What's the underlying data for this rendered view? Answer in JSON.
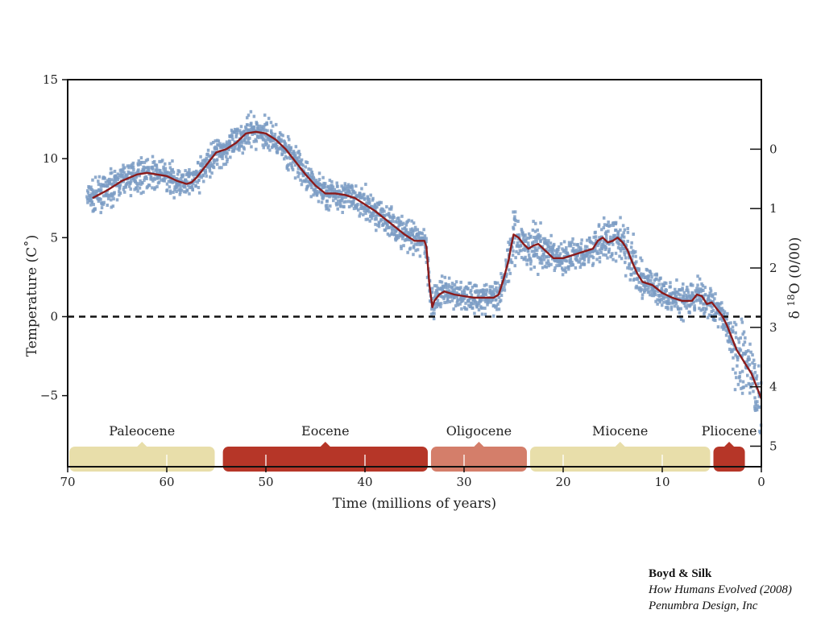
{
  "chart_data": {
    "type": "line",
    "title": "",
    "xlabel": "Time (millions of years)",
    "ylabel": "Temperature (C˚)",
    "y2label": "δ 18O (0/00)",
    "xlim": [
      70,
      0
    ],
    "ylim": [
      -9.5,
      15
    ],
    "x_ticks": [
      70,
      60,
      50,
      40,
      30,
      20,
      10,
      0
    ],
    "x_tick_labels": [
      "70",
      "60",
      "50",
      "40",
      "30",
      "20",
      "10",
      "0"
    ],
    "y_ticks": [
      15,
      10,
      5,
      0,
      -5
    ],
    "y_tick_labels": [
      "15",
      "10",
      "5",
      "0",
      "−5"
    ],
    "y2_ticks": [
      0,
      1,
      2,
      3,
      4,
      5
    ],
    "y2_tick_labels": [
      "0",
      "1",
      "2",
      "3",
      "4",
      "5"
    ],
    "y2_to_temperature": [
      [
        0,
        10.6
      ],
      [
        5,
        -8.2
      ]
    ],
    "reference_line": {
      "y": 0,
      "style": "dashed"
    },
    "grid": false,
    "series": [
      {
        "kind": "smoothed-mean",
        "color": "#8b1a1a",
        "x": [
          67.5,
          66,
          64.5,
          63,
          62,
          61,
          60,
          59,
          58,
          57.5,
          57,
          56,
          55,
          54,
          53,
          52,
          51,
          50,
          49,
          48,
          47,
          46,
          45,
          44,
          43,
          42,
          41,
          40,
          39,
          38,
          37,
          36,
          35,
          34,
          33.8,
          33.5,
          33.2,
          33,
          32.5,
          32,
          31,
          30,
          29,
          28,
          27,
          26.5,
          26,
          25.5,
          25.2,
          25,
          24.5,
          24,
          23.5,
          23,
          22.5,
          22,
          21,
          20,
          19,
          18,
          17,
          16.5,
          16,
          15.5,
          15,
          14.5,
          14,
          13.5,
          13,
          12.5,
          12,
          11,
          10,
          9,
          8,
          7,
          6.5,
          6,
          5.5,
          5,
          4.5,
          4,
          3.5,
          3,
          2.5,
          2,
          1.5,
          1,
          0.5,
          0
        ],
        "y": [
          7.5,
          8.0,
          8.6,
          9.0,
          9.1,
          9.0,
          8.9,
          8.6,
          8.4,
          8.5,
          8.8,
          9.6,
          10.4,
          10.6,
          11.0,
          11.6,
          11.7,
          11.6,
          11.2,
          10.6,
          9.8,
          9.0,
          8.3,
          7.8,
          7.8,
          7.7,
          7.5,
          7.1,
          6.7,
          6.2,
          5.7,
          5.2,
          4.8,
          4.8,
          4.4,
          2.0,
          0.6,
          1.0,
          1.4,
          1.6,
          1.4,
          1.3,
          1.2,
          1.2,
          1.2,
          1.4,
          2.4,
          3.6,
          4.6,
          5.2,
          5.0,
          4.6,
          4.3,
          4.5,
          4.6,
          4.3,
          3.7,
          3.7,
          3.9,
          4.1,
          4.3,
          4.8,
          5.0,
          4.7,
          4.8,
          5.0,
          4.7,
          4.2,
          3.4,
          2.7,
          2.2,
          2.0,
          1.5,
          1.2,
          1.0,
          1.0,
          1.4,
          1.3,
          0.8,
          0.9,
          0.5,
          0.1,
          -0.5,
          -1.3,
          -2.1,
          -2.6,
          -3.1,
          -3.6,
          -4.4,
          -5.2
        ]
      }
    ],
    "scatter_band": {
      "color": "#7b9cc4",
      "follows": "smoothed-mean",
      "spread": 0.6
    },
    "epochs": [
      {
        "name": "Paleocene",
        "start": 70,
        "end": 55,
        "color": "#e8deaa"
      },
      {
        "name": "Eocene",
        "start": 54.5,
        "end": 33.5,
        "color": "#b63628"
      },
      {
        "name": "Oligocene",
        "start": 33.5,
        "end": 23.5,
        "color": "#d47e6a"
      },
      {
        "name": "Miocene",
        "start": 23.5,
        "end": 5,
        "color": "#e8deaa"
      },
      {
        "name": "Pliocene",
        "start": 5,
        "end": 1.5,
        "color": "#b63628"
      }
    ]
  },
  "credit": {
    "authors": "Boyd & Silk",
    "book": "How Humans Evolved (2008)",
    "publisher": "Penumbra Design, Inc"
  }
}
